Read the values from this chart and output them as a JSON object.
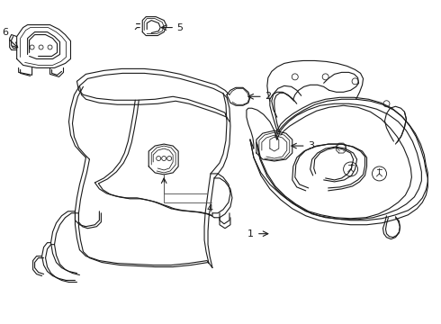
{
  "background_color": "#ffffff",
  "line_color": "#1a1a1a",
  "lw": 0.8,
  "fig_w": 4.9,
  "fig_h": 3.6,
  "dpi": 100
}
